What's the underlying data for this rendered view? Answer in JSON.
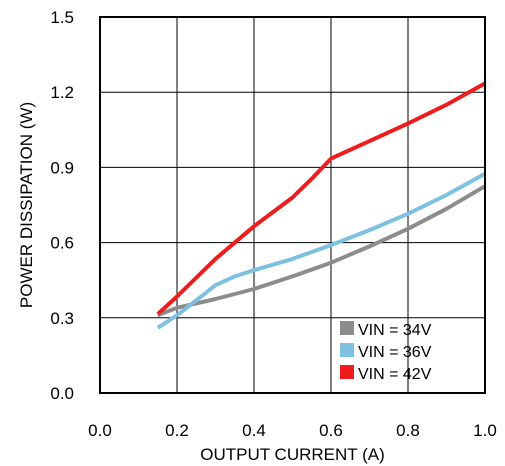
{
  "chart_data": {
    "type": "line",
    "title": "",
    "xlabel": "OUTPUT CURRENT (A)",
    "ylabel": "POWER DISSIPATION (W)",
    "xlim": [
      0.0,
      1.0
    ],
    "ylim": [
      0.0,
      1.5
    ],
    "xticks": [
      "0.0",
      "0.2",
      "0.4",
      "0.6",
      "0.8",
      "1.0"
    ],
    "yticks": [
      "0.0",
      "0.3",
      "0.6",
      "0.9",
      "1.2",
      "1.5"
    ],
    "grid": true,
    "legend_position": "bottom-right",
    "series": [
      {
        "name": "VIN = 34V",
        "color": "#8c8c8c",
        "x": [
          0.15,
          0.2,
          0.3,
          0.4,
          0.5,
          0.6,
          0.7,
          0.8,
          0.9,
          1.0
        ],
        "y": [
          0.31,
          0.34,
          0.375,
          0.415,
          0.465,
          0.52,
          0.585,
          0.655,
          0.735,
          0.825
        ]
      },
      {
        "name": "VIN = 36V",
        "color": "#7ec0e0",
        "x": [
          0.15,
          0.2,
          0.25,
          0.3,
          0.35,
          0.4,
          0.5,
          0.6,
          0.7,
          0.8,
          0.9,
          1.0
        ],
        "y": [
          0.26,
          0.31,
          0.37,
          0.43,
          0.465,
          0.49,
          0.535,
          0.59,
          0.65,
          0.715,
          0.79,
          0.875
        ]
      },
      {
        "name": "VIN = 42V",
        "color": "#ee1c1c",
        "x": [
          0.15,
          0.2,
          0.3,
          0.4,
          0.5,
          0.55,
          0.6,
          0.7,
          0.8,
          0.9,
          1.0
        ],
        "y": [
          0.315,
          0.385,
          0.535,
          0.665,
          0.78,
          0.855,
          0.935,
          1.005,
          1.075,
          1.15,
          1.235
        ]
      }
    ]
  }
}
